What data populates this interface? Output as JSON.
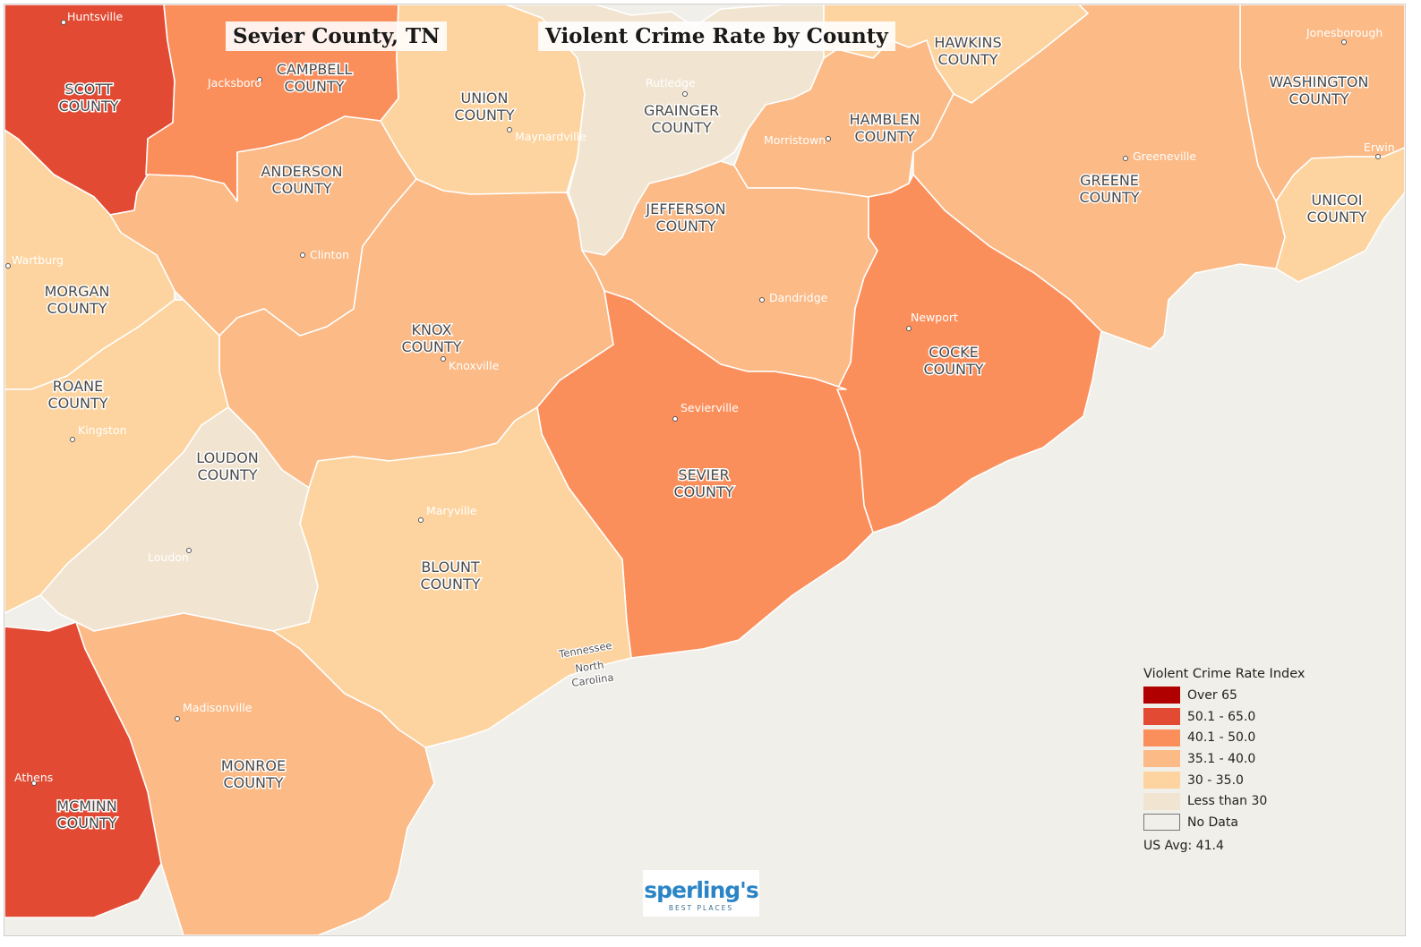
{
  "titles": {
    "county": "Sevier County, TN",
    "map": "Violent Crime Rate by County"
  },
  "colors": {
    "over_65": "#b00000",
    "r50_65": "#e24a33",
    "r40_50": "#fb8f5c",
    "r35_40": "#fbba86",
    "r30_35": "#fdd49f",
    "lt30": "#f1e4d1",
    "no_data": "#f1efe9"
  },
  "counties": [
    {
      "name": "SCOTT\nCOUNTY",
      "range": "50.1 - 65.0"
    },
    {
      "name": "CAMPBELL\nCOUNTY",
      "range": "40.1 - 50.0"
    },
    {
      "name": "UNION\nCOUNTY",
      "range": "30 - 35.0"
    },
    {
      "name": "GRAINGER\nCOUNTY",
      "range": "Less than 30"
    },
    {
      "name": "HAWKINS\nCOUNTY",
      "range": "30 - 35.0"
    },
    {
      "name": "HAMBLEN\nCOUNTY",
      "range": "35.1 - 40.0"
    },
    {
      "name": "WASHINGTON\nCOUNTY",
      "range": "35.1 - 40.0"
    },
    {
      "name": "UNICOI\nCOUNTY",
      "range": "30 - 35.0"
    },
    {
      "name": "GREENE\nCOUNTY",
      "range": "35.1 - 40.0"
    },
    {
      "name": "ANDERSON\nCOUNTY",
      "range": "35.1 - 40.0"
    },
    {
      "name": "JEFFERSON\nCOUNTY",
      "range": "35.1 - 40.0"
    },
    {
      "name": "MORGAN\nCOUNTY",
      "range": "30 - 35.0"
    },
    {
      "name": "KNOX\nCOUNTY",
      "range": "35.1 - 40.0"
    },
    {
      "name": "COCKE\nCOUNTY",
      "range": "40.1 - 50.0"
    },
    {
      "name": "ROANE\nCOUNTY",
      "range": "30 - 35.0"
    },
    {
      "name": "SEVIER\nCOUNTY",
      "range": "40.1 - 50.0"
    },
    {
      "name": "LOUDON\nCOUNTY",
      "range": "Less than 30"
    },
    {
      "name": "BLOUNT\nCOUNTY",
      "range": "30 - 35.0"
    },
    {
      "name": "MONROE\nCOUNTY",
      "range": "35.1 - 40.0"
    },
    {
      "name": "MCMINN\nCOUNTY",
      "range": "50.1 - 65.0"
    }
  ],
  "cities": [
    "Huntsville",
    "Jacksboro",
    "Rutledge",
    "Maynardville",
    "Jonesborough",
    "Morristown",
    "Greeneville",
    "Erwin",
    "Wartburg",
    "Clinton",
    "Dandridge",
    "Newport",
    "Knoxville",
    "Kingston",
    "Sevierville",
    "Maryville",
    "Loudon",
    "Madisonville",
    "Athens"
  ],
  "state_labels": [
    "Tennessee",
    "North",
    "Carolina"
  ],
  "legend": {
    "title": "Violent Crime Rate Index",
    "items": [
      {
        "label": "Over 65",
        "color": "#b00000"
      },
      {
        "label": "50.1 - 65.0",
        "color": "#e24a33"
      },
      {
        "label": "40.1 - 50.0",
        "color": "#fb8f5c"
      },
      {
        "label": "35.1 - 40.0",
        "color": "#fbba86"
      },
      {
        "label": "30 - 35.0",
        "color": "#fdd49f"
      },
      {
        "label": "Less than 30",
        "color": "#f1e4d1"
      },
      {
        "label": "No Data",
        "color": "#f1efe9"
      }
    ],
    "us_avg": "US Avg: 41.4"
  },
  "logo": {
    "main": "sperling's",
    "sub": "BEST PLACES"
  }
}
